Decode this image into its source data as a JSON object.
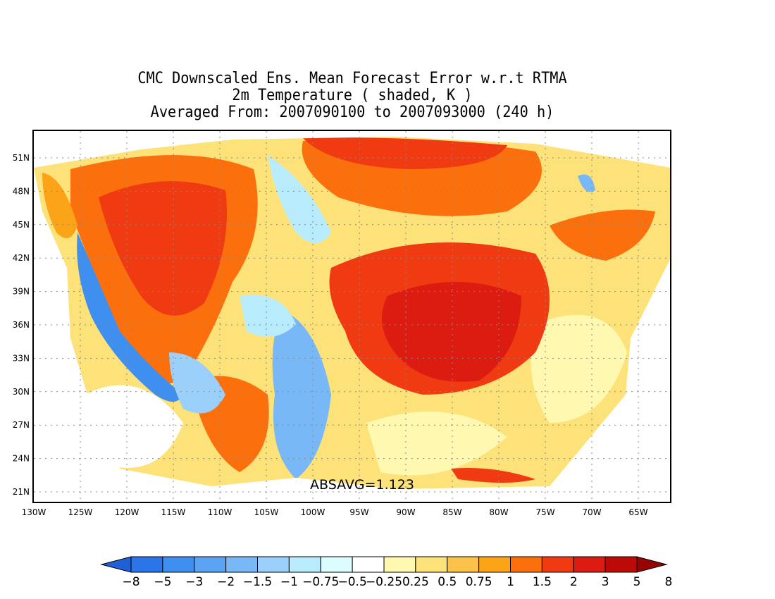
{
  "title": {
    "line1": "CMC Downscaled Ens. Mean Forecast Error w.r.t RTMA",
    "line2": "2m Temperature ( shaded, K )",
    "line3": "Averaged From: 2007090100 to 2007093000 (240 h)"
  },
  "map": {
    "lat_labels": [
      "51N",
      "48N",
      "45N",
      "42N",
      "39N",
      "36N",
      "33N",
      "30N",
      "27N",
      "24N",
      "21N"
    ],
    "lon_labels": [
      "130W",
      "125W",
      "120W",
      "115W",
      "110W",
      "105W",
      "100W",
      "95W",
      "90W",
      "85W",
      "80W",
      "75W",
      "70W",
      "65W"
    ],
    "stat_label": "ABSAVG=1.123",
    "grid": true
  },
  "colorbar": {
    "labels": [
      "−8",
      "−5",
      "−3",
      "−2",
      "−1.5",
      "−1",
      "−0.75",
      "−0.5",
      "−0.25",
      "0.25",
      "0.5",
      "0.75",
      "1",
      "1.5",
      "2",
      "3",
      "5",
      "8"
    ],
    "colors": [
      "#1f5fd8",
      "#2b75e8",
      "#3f8ff0",
      "#5aa2f2",
      "#78b8f6",
      "#9bd0fb",
      "#b8ecfc",
      "#dcfdfd",
      "#ffffff",
      "#fff8b0",
      "#fde27a",
      "#fcc24a",
      "#fca418",
      "#fb6f0c",
      "#f03a12",
      "#dc1c10",
      "#bc0a08",
      "#960404"
    ]
  },
  "colors": {
    "strong_warm": "#e43a10",
    "warm": "#fb6f0c",
    "mild_warm": "#fcc24a",
    "cool": "#78b8f6",
    "strong_cool": "#3f8ff0"
  }
}
